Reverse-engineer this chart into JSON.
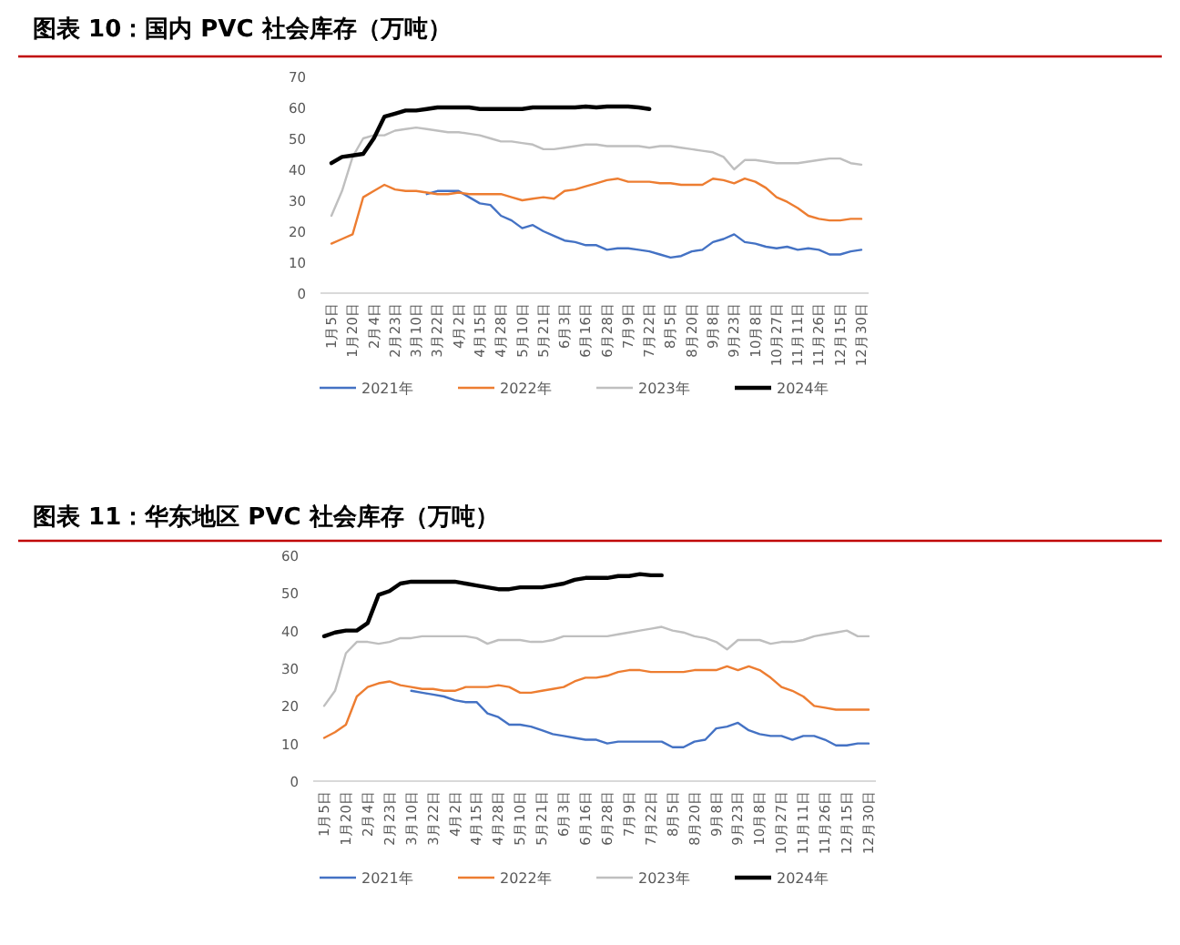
{
  "chart_data": [
    {
      "type": "line",
      "title": "图表 10：国内 PVC 社会库存（万吨）",
      "categories": [
        "1月5日",
        null,
        "1月20日",
        null,
        "2月4日",
        null,
        "2月23日",
        null,
        "3月10日",
        null,
        "3月22日",
        null,
        "4月2日",
        null,
        "4月15日",
        null,
        "4月28日",
        null,
        "5月10日",
        null,
        "5月21日",
        null,
        "6月3日",
        null,
        "6月16日",
        null,
        "6月28日",
        null,
        "7月9日",
        null,
        "7月22日",
        null,
        "8月5日",
        null,
        "8月20日",
        null,
        "9月8日",
        null,
        "9月23日",
        null,
        "10月8日",
        null,
        "10月27日",
        null,
        "11月11日",
        null,
        "11月26日",
        null,
        "12月15日",
        null,
        "12月30日"
      ],
      "ylim": [
        0,
        70
      ],
      "yticks": [
        0,
        10,
        20,
        30,
        40,
        50,
        60,
        70
      ],
      "grid": false,
      "legend": "bottom",
      "marker": "none",
      "line_style": "solid",
      "series": [
        {
          "name": "2021年",
          "color": "#4472c4",
          "values": [
            null,
            null,
            null,
            null,
            null,
            null,
            null,
            null,
            null,
            32,
            33,
            33,
            33,
            31,
            29,
            28.5,
            25,
            23.5,
            21,
            22,
            20,
            18.5,
            17,
            16.5,
            15.5,
            15.5,
            14,
            14.5,
            14.5,
            14,
            13.5,
            12.5,
            11.5,
            12,
            13.5,
            14,
            16.5,
            17.5,
            19,
            16.5,
            16,
            15,
            14.5,
            15,
            14,
            14.5,
            14,
            12.5,
            12.5,
            13.5,
            14
          ]
        },
        {
          "name": "2022年",
          "color": "#ed7d31",
          "values": [
            16,
            17.5,
            19,
            31,
            33,
            35,
            33.5,
            33,
            33,
            32.5,
            32,
            32,
            32.5,
            32,
            32,
            32,
            32,
            31,
            30,
            30.5,
            31,
            30.5,
            33,
            33.5,
            34.5,
            35.5,
            36.5,
            37,
            36,
            36,
            36,
            35.5,
            35.5,
            35,
            35,
            35,
            37,
            36.5,
            35.5,
            37,
            36,
            34,
            31,
            29.5,
            27.5,
            25,
            24,
            23.5,
            23.5,
            24,
            24
          ]
        },
        {
          "name": "2023年",
          "color": "#bfbfbf",
          "values": [
            25,
            33,
            44,
            50,
            51,
            51,
            52.5,
            53,
            53.5,
            53,
            52.5,
            52,
            52,
            51.5,
            51,
            50,
            49,
            49,
            48.5,
            48,
            46.5,
            46.5,
            47,
            47.5,
            48,
            48,
            47.5,
            47.5,
            47.5,
            47.5,
            47,
            47.5,
            47.5,
            47,
            46.5,
            46,
            45.5,
            44,
            40,
            43,
            43,
            42.5,
            42,
            42,
            42,
            42.5,
            43,
            43.5,
            43.5,
            42,
            41.5
          ]
        },
        {
          "name": "2024年",
          "color": "#000000",
          "values": [
            42,
            44,
            44.5,
            45,
            50,
            57,
            58,
            59,
            59,
            59.5,
            60,
            60,
            60,
            60,
            59.5,
            59.5,
            59.5,
            59.5,
            59.5,
            60,
            60,
            60,
            60,
            60,
            60.3,
            60,
            60.3,
            60.3,
            60.3,
            60,
            59.5,
            null,
            null,
            null,
            null,
            null,
            null,
            null,
            null,
            null,
            null,
            null,
            null,
            null,
            null,
            null,
            null,
            null,
            null,
            null,
            null
          ]
        }
      ]
    },
    {
      "type": "line",
      "title": "图表 11：华东地区 PVC 社会库存（万吨）",
      "categories": [
        "1月5日",
        null,
        "1月20日",
        null,
        "2月4日",
        null,
        "2月23日",
        null,
        "3月10日",
        null,
        "3月22日",
        null,
        "4月2日",
        null,
        "4月15日",
        null,
        "4月28日",
        null,
        "5月10日",
        null,
        "5月21日",
        null,
        "6月3日",
        null,
        "6月16日",
        null,
        "6月28日",
        null,
        "7月9日",
        null,
        "7月22日",
        null,
        "8月5日",
        null,
        "8月20日",
        null,
        "9月8日",
        null,
        "9月23日",
        null,
        "10月8日",
        null,
        "10月27日",
        null,
        "11月11日",
        null,
        "11月26日",
        null,
        "12月15日",
        null,
        "12月30日"
      ],
      "ylim": [
        0,
        60
      ],
      "yticks": [
        0,
        10,
        20,
        30,
        40,
        50,
        60
      ],
      "grid": false,
      "legend": "bottom",
      "marker": "none",
      "line_style": "solid",
      "series": [
        {
          "name": "2021年",
          "color": "#4472c4",
          "values": [
            null,
            null,
            null,
            null,
            null,
            null,
            null,
            null,
            24,
            23.5,
            23,
            22.5,
            21.5,
            21,
            21,
            18,
            17,
            15,
            15,
            14.5,
            13.5,
            12.5,
            12,
            11.5,
            11,
            11,
            10,
            10.5,
            10.5,
            10.5,
            10.5,
            10.5,
            9,
            9,
            10.5,
            11,
            14,
            14.5,
            15.5,
            13.5,
            12.5,
            12,
            12,
            11,
            12,
            12,
            11,
            9.5,
            9.5,
            10,
            10
          ]
        },
        {
          "name": "2022年",
          "color": "#ed7d31",
          "values": [
            11.5,
            13,
            15,
            22.5,
            25,
            26,
            26.5,
            25.5,
            25,
            24.5,
            24.5,
            24,
            24,
            25,
            25,
            25,
            25.5,
            25,
            23.5,
            23.5,
            24,
            24.5,
            25,
            26.5,
            27.5,
            27.5,
            28,
            29,
            29.5,
            29.5,
            29,
            29,
            29,
            29,
            29.5,
            29.5,
            29.5,
            30.5,
            29.5,
            30.5,
            29.5,
            27.5,
            25,
            24,
            22.5,
            20,
            19.5,
            19,
            19,
            19,
            19
          ]
        },
        {
          "name": "2023年",
          "color": "#bfbfbf",
          "values": [
            20,
            24,
            34,
            37,
            37,
            36.5,
            37,
            38,
            38,
            38.5,
            38.5,
            38.5,
            38.5,
            38.5,
            38,
            36.5,
            37.5,
            37.5,
            37.5,
            37,
            37,
            37.5,
            38.5,
            38.5,
            38.5,
            38.5,
            38.5,
            39,
            39.5,
            40,
            40.5,
            41,
            40,
            39.5,
            38.5,
            38,
            37,
            35,
            37.5,
            37.5,
            37.5,
            36.5,
            37,
            37,
            37.5,
            38.5,
            39,
            39.5,
            40,
            38.5,
            38.5
          ]
        },
        {
          "name": "2024年",
          "color": "#000000",
          "values": [
            38.5,
            39.5,
            40,
            40,
            42,
            49.5,
            50.5,
            52.5,
            53,
            53,
            53,
            53,
            53,
            52.5,
            52,
            51.5,
            51,
            51,
            51.5,
            51.5,
            51.5,
            52,
            52.5,
            53.5,
            54,
            54,
            54,
            54.5,
            54.5,
            55,
            54.7,
            54.7,
            null,
            null,
            null,
            null,
            null,
            null,
            null,
            null,
            null,
            null,
            null,
            null,
            null,
            null,
            null,
            null,
            null,
            null,
            null
          ]
        }
      ]
    }
  ]
}
